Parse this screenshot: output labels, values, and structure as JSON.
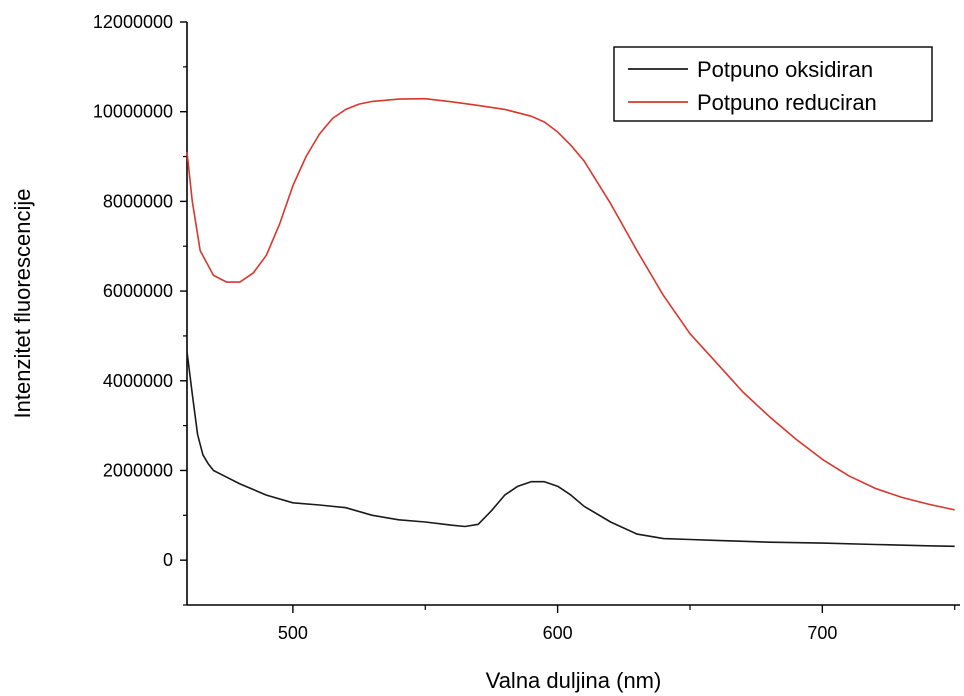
{
  "chart_data": {
    "type": "line",
    "title": "",
    "xlabel": "Valna duljina (nm)",
    "ylabel": "Intenzitet fluorescencije",
    "xlim": [
      460,
      752
    ],
    "ylim": [
      -1000000,
      12000000
    ],
    "xticks": [
      500,
      600,
      700
    ],
    "xtick_labels": [
      "500",
      "600",
      "700"
    ],
    "yticks": [
      0,
      2000000,
      4000000,
      6000000,
      8000000,
      10000000,
      12000000
    ],
    "ytick_labels": [
      "0",
      "2000000",
      "4000000",
      "6000000",
      "8000000",
      "10000000",
      "12000000"
    ],
    "grid": false,
    "legend_position": "top-right",
    "series": [
      {
        "name": "Potpuno oksidiran",
        "color": "#1a1a1a",
        "x": [
          460,
          462,
          464,
          466,
          468,
          470,
          475,
          480,
          490,
          500,
          510,
          520,
          530,
          540,
          550,
          560,
          565,
          570,
          575,
          580,
          585,
          590,
          595,
          600,
          605,
          610,
          620,
          630,
          640,
          650,
          660,
          680,
          700,
          720,
          740,
          750
        ],
        "y": [
          4650000,
          3700000,
          2800000,
          2350000,
          2150000,
          2000000,
          1850000,
          1700000,
          1450000,
          1280000,
          1230000,
          1170000,
          1000000,
          900000,
          850000,
          780000,
          750000,
          800000,
          1100000,
          1450000,
          1650000,
          1750000,
          1750000,
          1650000,
          1450000,
          1200000,
          850000,
          580000,
          480000,
          460000,
          440000,
          400000,
          380000,
          350000,
          320000,
          310000
        ]
      },
      {
        "name": "Potpuno reduciran",
        "color": "#d8372c",
        "x": [
          460,
          462,
          465,
          470,
          475,
          480,
          485,
          490,
          495,
          500,
          505,
          510,
          515,
          520,
          525,
          530,
          540,
          550,
          560,
          570,
          580,
          590,
          595,
          600,
          605,
          610,
          620,
          630,
          640,
          650,
          660,
          670,
          680,
          690,
          700,
          710,
          720,
          730,
          740,
          750
        ],
        "y": [
          9100000,
          8000000,
          6900000,
          6350000,
          6200000,
          6200000,
          6400000,
          6800000,
          7500000,
          8350000,
          9000000,
          9500000,
          9850000,
          10050000,
          10170000,
          10230000,
          10280000,
          10290000,
          10220000,
          10140000,
          10050000,
          9900000,
          9770000,
          9550000,
          9250000,
          8900000,
          7950000,
          6900000,
          5900000,
          5050000,
          4400000,
          3750000,
          3200000,
          2700000,
          2250000,
          1880000,
          1600000,
          1400000,
          1250000,
          1120000
        ]
      }
    ]
  }
}
